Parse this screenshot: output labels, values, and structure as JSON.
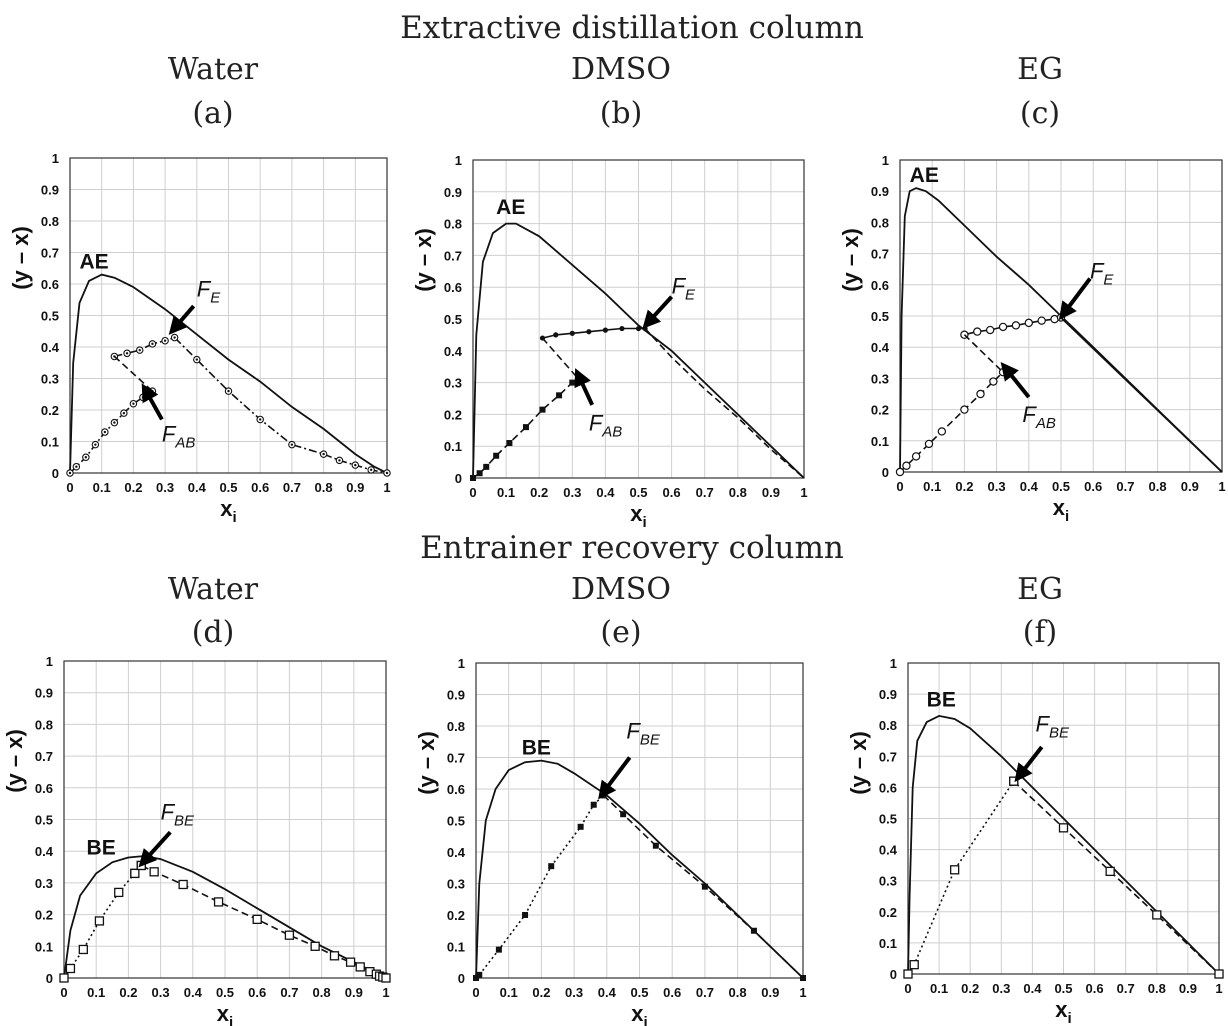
{
  "titles": {
    "top": "Extractive distillation column",
    "bottom": "Entrainer recovery column"
  },
  "chart_data": [
    {
      "type": "line",
      "panel_label": "(a)",
      "solvent": "Water",
      "xlabel": "x",
      "xlabel_sub": "i",
      "ylabel": "(y – x)",
      "xlim": [
        0,
        1
      ],
      "ylim": [
        0,
        1
      ],
      "xticks": [
        "0",
        "0.1",
        "0.2",
        "0.3",
        "0.4",
        "0.5",
        "0.6",
        "0.7",
        "0.8",
        "0.9",
        "1"
      ],
      "yticks": [
        "0",
        "0.1",
        "0.2",
        "0.3",
        "0.4",
        "0.5",
        "0.6",
        "0.7",
        "0.8",
        "0.9",
        "1"
      ],
      "series": [
        {
          "name": "AE",
          "style": "solid",
          "marker": "none",
          "x": [
            0,
            0.01,
            0.03,
            0.06,
            0.1,
            0.14,
            0.2,
            0.3,
            0.4,
            0.5,
            0.6,
            0.7,
            0.8,
            0.9,
            0.96,
            1
          ],
          "y": [
            0,
            0.35,
            0.54,
            0.61,
            0.63,
            0.62,
            0.59,
            0.52,
            0.44,
            0.36,
            0.29,
            0.21,
            0.14,
            0.06,
            0.02,
            0
          ]
        },
        {
          "style": "dashdot",
          "marker": "circle-dot",
          "x": [
            0.14,
            0.18,
            0.22,
            0.26,
            0.3,
            0.33,
            0.4,
            0.5,
            0.6,
            0.7,
            0.8,
            0.85,
            0.9,
            0.95,
            1
          ],
          "y": [
            0.37,
            0.38,
            0.39,
            0.41,
            0.42,
            0.43,
            0.36,
            0.26,
            0.17,
            0.09,
            0.06,
            0.04,
            0.025,
            0.01,
            0
          ]
        },
        {
          "style": "dashdot",
          "marker": "circle-dot",
          "x": [
            0,
            0.02,
            0.05,
            0.08,
            0.11,
            0.14,
            0.17,
            0.2,
            0.23,
            0.26
          ],
          "y": [
            0,
            0.02,
            0.05,
            0.09,
            0.13,
            0.16,
            0.19,
            0.22,
            0.24,
            0.26
          ]
        },
        {
          "style": "dashed",
          "marker": "none",
          "x": [
            0.14,
            0.26
          ],
          "y": [
            0.37,
            0.26
          ]
        }
      ],
      "labels": [
        {
          "text": "AE",
          "x": 0.03,
          "y": 0.65
        },
        {
          "text": "F",
          "sub": "E",
          "x": 0.4,
          "y": 0.56
        },
        {
          "text": "F",
          "sub": "AB",
          "x": 0.29,
          "y": 0.1
        }
      ],
      "arrows": [
        {
          "from": [
            0.39,
            0.53
          ],
          "to": [
            0.33,
            0.46
          ]
        },
        {
          "from": [
            0.29,
            0.17
          ],
          "to": [
            0.24,
            0.26
          ]
        }
      ]
    },
    {
      "type": "line",
      "panel_label": "(b)",
      "solvent": "DMSO",
      "xlabel": "x",
      "xlabel_sub": "i",
      "ylabel": "(y – x)",
      "xlim": [
        0,
        1
      ],
      "ylim": [
        0,
        1
      ],
      "xticks": [
        "0",
        "0.1",
        "0.2",
        "0.3",
        "0.4",
        "0.5",
        "0.6",
        "0.7",
        "0.8",
        "0.9",
        "1"
      ],
      "yticks": [
        "0",
        "0.1",
        "0.2",
        "0.3",
        "0.4",
        "0.5",
        "0.6",
        "0.7",
        "0.8",
        "0.9",
        "1"
      ],
      "series": [
        {
          "name": "AE",
          "style": "solid",
          "marker": "none",
          "x": [
            0,
            0.01,
            0.03,
            0.06,
            0.1,
            0.13,
            0.2,
            0.3,
            0.4,
            0.5,
            0.6,
            0.7,
            0.8,
            0.9,
            1
          ],
          "y": [
            0,
            0.45,
            0.68,
            0.77,
            0.8,
            0.8,
            0.76,
            0.67,
            0.58,
            0.48,
            0.4,
            0.3,
            0.2,
            0.1,
            0
          ]
        },
        {
          "style": "solid",
          "marker": "dot",
          "x": [
            0.21,
            0.25,
            0.3,
            0.35,
            0.4,
            0.45,
            0.5,
            0.52
          ],
          "y": [
            0.44,
            0.45,
            0.455,
            0.46,
            0.465,
            0.47,
            0.47,
            0.47
          ]
        },
        {
          "style": "dashed",
          "marker": "none",
          "x": [
            0.52,
            0.6,
            0.7,
            0.8,
            0.9,
            1
          ],
          "y": [
            0.47,
            0.38,
            0.28,
            0.19,
            0.09,
            0
          ]
        },
        {
          "style": "dashed",
          "marker": "square",
          "x": [
            0,
            0.02,
            0.04,
            0.07,
            0.11,
            0.16,
            0.21,
            0.26,
            0.3,
            0.32
          ],
          "y": [
            0,
            0.015,
            0.035,
            0.07,
            0.11,
            0.16,
            0.215,
            0.26,
            0.3,
            0.31
          ]
        },
        {
          "style": "dashed",
          "marker": "none",
          "x": [
            0.21,
            0.32
          ],
          "y": [
            0.44,
            0.31
          ]
        }
      ],
      "labels": [
        {
          "text": "AE",
          "x": 0.07,
          "y": 0.83
        },
        {
          "text": "F",
          "sub": "E",
          "x": 0.6,
          "y": 0.58
        },
        {
          "text": "F",
          "sub": "AB",
          "x": 0.35,
          "y": 0.15
        }
      ],
      "arrows": [
        {
          "from": [
            0.6,
            0.57
          ],
          "to": [
            0.53,
            0.49
          ]
        },
        {
          "from": [
            0.36,
            0.23
          ],
          "to": [
            0.32,
            0.32
          ]
        }
      ]
    },
    {
      "type": "line",
      "panel_label": "(c)",
      "solvent": "EG",
      "xlabel": "x",
      "xlabel_sub": "i",
      "ylabel": "(y – x)",
      "xlim": [
        0,
        1
      ],
      "ylim": [
        0,
        1
      ],
      "xticks": [
        "0",
        "0.1",
        "0.2",
        "0.3",
        "0.4",
        "0.5",
        "0.6",
        "0.7",
        "0.8",
        "0.9",
        "1"
      ],
      "yticks": [
        "0",
        "0.1",
        "0.2",
        "0.3",
        "0.4",
        "0.5",
        "0.6",
        "0.7",
        "0.8",
        "0.9",
        "1"
      ],
      "series": [
        {
          "name": "AE",
          "style": "solid",
          "marker": "none",
          "x": [
            0,
            0.005,
            0.015,
            0.03,
            0.05,
            0.08,
            0.12,
            0.2,
            0.3,
            0.4,
            0.5,
            0.6,
            0.7,
            0.8,
            0.9,
            1
          ],
          "y": [
            0,
            0.5,
            0.82,
            0.9,
            0.91,
            0.9,
            0.87,
            0.79,
            0.69,
            0.6,
            0.5,
            0.4,
            0.3,
            0.2,
            0.1,
            0
          ]
        },
        {
          "style": "solid",
          "marker": "circle",
          "x": [
            0.2,
            0.24,
            0.28,
            0.32,
            0.36,
            0.4,
            0.44,
            0.48,
            0.5
          ],
          "y": [
            0.44,
            0.45,
            0.455,
            0.465,
            0.47,
            0.478,
            0.485,
            0.49,
            0.495
          ]
        },
        {
          "style": "dashed",
          "marker": "circle",
          "x": [
            0,
            0.02,
            0.05,
            0.09,
            0.13,
            0.2,
            0.25,
            0.29,
            0.32
          ],
          "y": [
            0,
            0.02,
            0.05,
            0.09,
            0.13,
            0.2,
            0.25,
            0.29,
            0.32
          ]
        },
        {
          "style": "dashed",
          "marker": "none",
          "x": [
            0.2,
            0.32
          ],
          "y": [
            0.44,
            0.32
          ]
        },
        {
          "style": "solid",
          "marker": "none",
          "x": [
            0.5,
            1
          ],
          "y": [
            0.495,
            0
          ]
        }
      ],
      "labels": [
        {
          "text": "AE",
          "x": 0.03,
          "y": 0.93
        },
        {
          "text": "F",
          "sub": "E",
          "x": 0.59,
          "y": 0.62
        },
        {
          "text": "F",
          "sub": "AB",
          "x": 0.38,
          "y": 0.16
        }
      ],
      "arrows": [
        {
          "from": [
            0.59,
            0.62
          ],
          "to": [
            0.51,
            0.51
          ]
        },
        {
          "from": [
            0.4,
            0.24
          ],
          "to": [
            0.33,
            0.33
          ]
        }
      ]
    },
    {
      "type": "line",
      "panel_label": "(d)",
      "solvent": "Water",
      "xlabel": "x",
      "xlabel_sub": "i",
      "ylabel": "(y – x)",
      "xlim": [
        0,
        1
      ],
      "ylim": [
        0,
        1
      ],
      "xticks": [
        "0",
        "0.1",
        "0.2",
        "0.3",
        "0.4",
        "0.5",
        "0.6",
        "0.7",
        "0.8",
        "0.9",
        "1"
      ],
      "yticks": [
        "0",
        "0.1",
        "0.2",
        "0.3",
        "0.4",
        "0.5",
        "0.6",
        "0.7",
        "0.8",
        "0.9",
        "1"
      ],
      "series": [
        {
          "name": "BE",
          "style": "solid",
          "marker": "none",
          "x": [
            0,
            0.02,
            0.05,
            0.1,
            0.15,
            0.2,
            0.25,
            0.3,
            0.4,
            0.5,
            0.6,
            0.7,
            0.8,
            0.9,
            1
          ],
          "y": [
            0,
            0.15,
            0.26,
            0.33,
            0.365,
            0.38,
            0.385,
            0.375,
            0.335,
            0.28,
            0.22,
            0.16,
            0.1,
            0.05,
            0
          ]
        },
        {
          "style": "dashed",
          "marker": "square-open",
          "x": [
            0.22,
            0.24,
            0.28,
            0.37,
            0.48,
            0.6,
            0.7,
            0.78,
            0.84,
            0.89,
            0.92,
            0.95,
            0.97,
            0.98,
            0.99,
            1
          ],
          "y": [
            0.33,
            0.355,
            0.335,
            0.295,
            0.24,
            0.185,
            0.135,
            0.1,
            0.07,
            0.05,
            0.035,
            0.02,
            0.012,
            0.006,
            0.003,
            0
          ]
        },
        {
          "style": "dotted",
          "marker": "square-open",
          "x": [
            0,
            0.02,
            0.06,
            0.11,
            0.17,
            0.22,
            0.24
          ],
          "y": [
            0,
            0.03,
            0.09,
            0.18,
            0.27,
            0.33,
            0.355
          ]
        }
      ],
      "labels": [
        {
          "text": "BE",
          "x": 0.07,
          "y": 0.39
        },
        {
          "text": "F",
          "sub": "BE",
          "x": 0.3,
          "y": 0.5
        }
      ],
      "arrows": [
        {
          "from": [
            0.33,
            0.46
          ],
          "to": [
            0.25,
            0.37
          ]
        }
      ]
    },
    {
      "type": "line",
      "panel_label": "(e)",
      "solvent": "DMSO",
      "xlabel": "x",
      "xlabel_sub": "i",
      "ylabel": "(y – x)",
      "xlim": [
        0,
        1
      ],
      "ylim": [
        0,
        1
      ],
      "xticks": [
        "0",
        "0.1",
        "0.2",
        "0.3",
        "0.4",
        "0.5",
        "0.6",
        "0.7",
        "0.8",
        "0.9",
        "1"
      ],
      "yticks": [
        "0",
        "0.1",
        "0.2",
        "0.3",
        "0.4",
        "0.5",
        "0.6",
        "0.7",
        "0.8",
        "0.9",
        "1"
      ],
      "series": [
        {
          "name": "BE",
          "style": "solid",
          "marker": "none",
          "x": [
            0,
            0.01,
            0.03,
            0.06,
            0.1,
            0.15,
            0.2,
            0.25,
            0.3,
            0.4,
            0.5,
            0.6,
            0.7,
            0.8,
            0.9,
            1
          ],
          "y": [
            0,
            0.3,
            0.5,
            0.6,
            0.66,
            0.685,
            0.69,
            0.68,
            0.65,
            0.58,
            0.49,
            0.39,
            0.3,
            0.2,
            0.1,
            0
          ]
        },
        {
          "style": "dotted",
          "marker": "square",
          "x": [
            0,
            0.01,
            0.07,
            0.15,
            0.23,
            0.32,
            0.36,
            0.39
          ],
          "y": [
            0,
            0.01,
            0.09,
            0.2,
            0.355,
            0.48,
            0.55,
            0.58
          ]
        },
        {
          "style": "dashed",
          "marker": "square",
          "x": [
            0.39,
            0.45,
            0.55,
            0.7,
            0.85,
            1
          ],
          "y": [
            0.58,
            0.52,
            0.42,
            0.29,
            0.15,
            0
          ]
        }
      ],
      "labels": [
        {
          "text": "BE",
          "x": 0.14,
          "y": 0.71
        },
        {
          "text": "F",
          "sub": "BE",
          "x": 0.46,
          "y": 0.76
        }
      ],
      "arrows": [
        {
          "from": [
            0.47,
            0.7
          ],
          "to": [
            0.39,
            0.59
          ]
        }
      ]
    },
    {
      "type": "line",
      "panel_label": "(f)",
      "solvent": "EG",
      "xlabel": "x",
      "xlabel_sub": "i",
      "ylabel": "(y – x)",
      "xlim": [
        0,
        1
      ],
      "ylim": [
        0,
        1
      ],
      "xticks": [
        "0",
        "0.1",
        "0.2",
        "0.3",
        "0.4",
        "0.5",
        "0.6",
        "0.7",
        "0.8",
        "0.9",
        "1"
      ],
      "yticks": [
        "0",
        "0.1",
        "0.2",
        "0.3",
        "0.4",
        "0.5",
        "0.6",
        "0.7",
        "0.8",
        "0.9",
        "1"
      ],
      "series": [
        {
          "name": "BE",
          "style": "solid",
          "marker": "none",
          "x": [
            0,
            0.005,
            0.015,
            0.03,
            0.06,
            0.1,
            0.15,
            0.2,
            0.3,
            0.4,
            0.5,
            0.6,
            0.7,
            0.8,
            0.9,
            1
          ],
          "y": [
            0,
            0.25,
            0.6,
            0.75,
            0.81,
            0.83,
            0.82,
            0.79,
            0.7,
            0.6,
            0.5,
            0.4,
            0.3,
            0.2,
            0.1,
            0
          ]
        },
        {
          "style": "dotted",
          "marker": "square-open",
          "x": [
            0,
            0.02,
            0.15,
            0.34
          ],
          "y": [
            0,
            0.03,
            0.335,
            0.62
          ]
        },
        {
          "style": "dashed",
          "marker": "square-open",
          "x": [
            0.34,
            0.5,
            0.65,
            0.8,
            1
          ],
          "y": [
            0.62,
            0.47,
            0.33,
            0.19,
            0
          ]
        }
      ],
      "labels": [
        {
          "text": "BE",
          "x": 0.06,
          "y": 0.86
        },
        {
          "text": "F",
          "sub": "BE",
          "x": 0.41,
          "y": 0.78
        }
      ],
      "arrows": [
        {
          "from": [
            0.43,
            0.73
          ],
          "to": [
            0.36,
            0.64
          ]
        }
      ]
    }
  ]
}
